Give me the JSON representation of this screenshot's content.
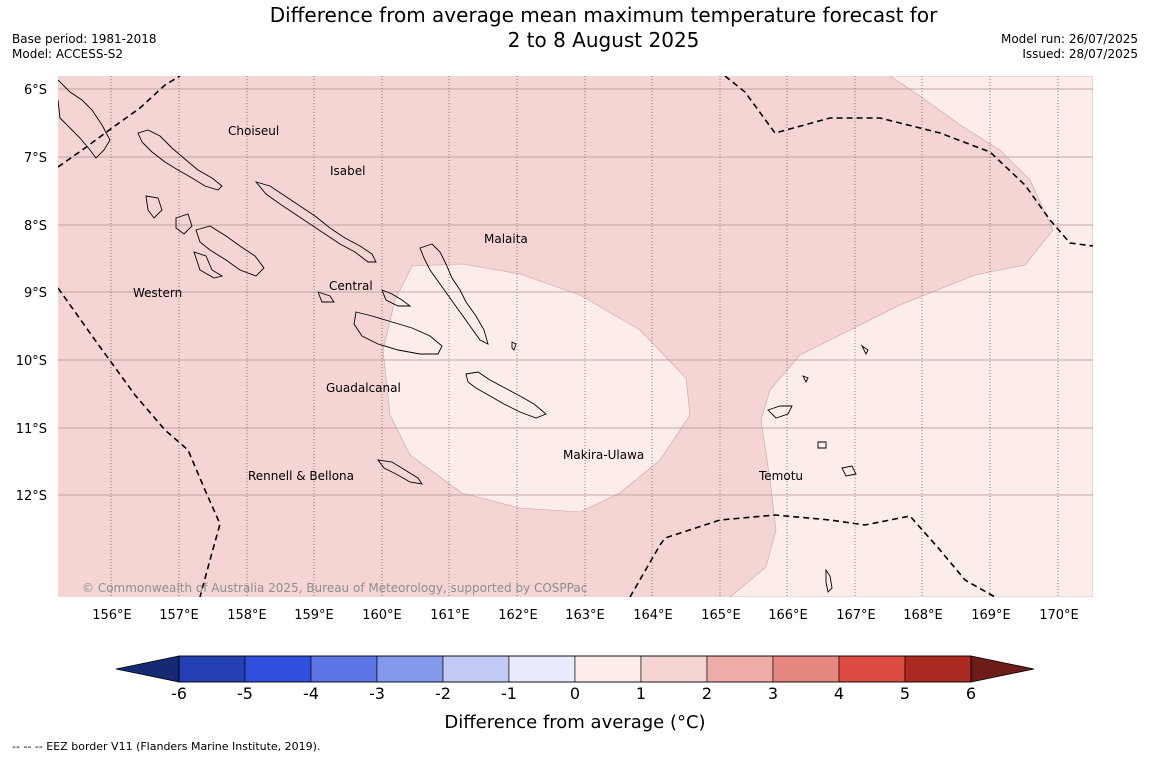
{
  "header": {
    "title_line1": "Difference from average mean maximum temperature forecast for",
    "title_line2": "2 to 8 August 2025",
    "base_period": "Base period: 1981-2018",
    "model": "Model: ACCESS-S2",
    "model_run": "Model run: 26/07/2025",
    "issued": "Issued: 28/07/2025"
  },
  "map": {
    "lat_labels": [
      "6°S",
      "7°S",
      "8°S",
      "9°S",
      "10°S",
      "11°S",
      "12°S"
    ],
    "lon_labels": [
      "156°E",
      "157°E",
      "158°E",
      "159°E",
      "160°E",
      "161°E",
      "162°E",
      "163°E",
      "164°E",
      "165°E",
      "166°E",
      "167°E",
      "168°E",
      "169°E",
      "170°E"
    ],
    "provinces": {
      "choiseul": "Choiseul",
      "isabel": "Isabel",
      "malaita": "Malaita",
      "western": "Western",
      "central": "Central",
      "guadalcanal": "Guadalcanal",
      "makira": "Makira-Ulawa",
      "rennell": "Rennell & Bellona",
      "temotu": "Temotu"
    },
    "copyright": "© Commonwealth of Australia 2025, Bureau of Meteorology, supported by COSPPac",
    "colors": {
      "band_1_2": "#f5d5d4",
      "band_0_1": "#fcecea"
    }
  },
  "colorbar": {
    "ticks": [
      "-6",
      "-5",
      "-4",
      "-3",
      "-2",
      "-1",
      "0",
      "1",
      "2",
      "3",
      "4",
      "5",
      "6"
    ],
    "label": "Difference from average (°C)",
    "colors": {
      "below_min": "#162a73",
      "bands": [
        "#2440b2",
        "#2f4fdc",
        "#5a74e3",
        "#8499ec",
        "#c1c9f4",
        "#e8ebfb",
        "#fcecea",
        "#f5d5d4",
        "#eeaca9",
        "#e68880",
        "#dc4b40",
        "#ac2a24"
      ],
      "above_max": "#6e1c18"
    }
  },
  "footnote": "--  --  -- EEZ border V11 (Flanders Marine Institute, 2019)."
}
